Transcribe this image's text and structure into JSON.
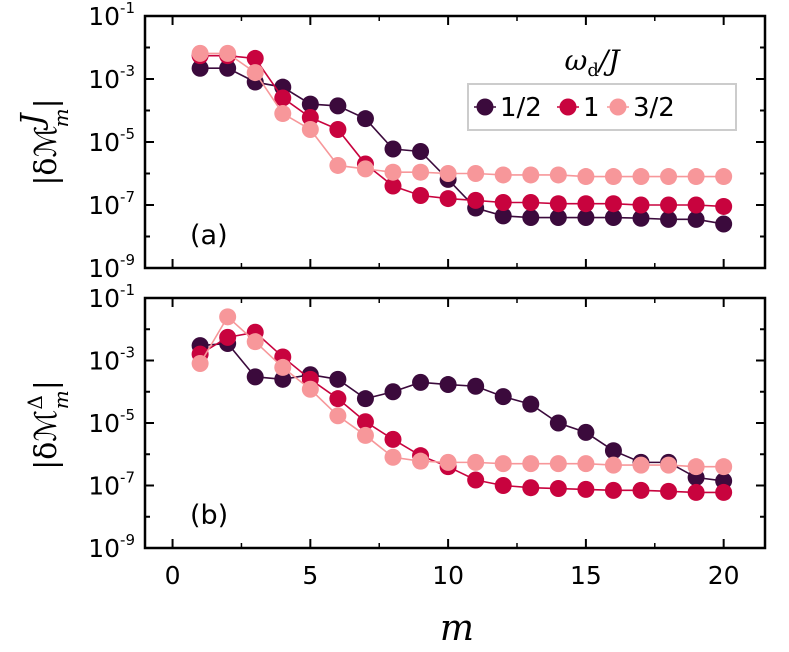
{
  "figure": {
    "xlabel": "m",
    "legend": {
      "title": "ωd/J",
      "title_main": "ω",
      "title_sub": "d",
      "title_rest": "/J"
    }
  },
  "chart_data": [
    {
      "type": "line",
      "panel": "(a)",
      "ylabel": "|δℳ_m^J|",
      "ylabel_sup": "J",
      "yscale": "log",
      "xlim": [
        -1,
        21.5
      ],
      "ylim": [
        1e-09,
        0.1
      ],
      "xticks": [
        0,
        5,
        10,
        15,
        20
      ],
      "xtick_labels": [
        "0",
        "5",
        "10",
        "15",
        "20"
      ],
      "yticks": [
        1e-09,
        1e-07,
        1e-05,
        0.001,
        0.1
      ],
      "ytick_labels": [
        {
          "base": "10",
          "exp": "-9"
        },
        {
          "base": "10",
          "exp": "-7"
        },
        {
          "base": "10",
          "exp": "-5"
        },
        {
          "base": "10",
          "exp": "-3"
        },
        {
          "base": "10",
          "exp": "-1"
        }
      ],
      "x": [
        1,
        2,
        3,
        4,
        5,
        6,
        7,
        8,
        9,
        10,
        11,
        12,
        13,
        14,
        15,
        16,
        17,
        18,
        19,
        20
      ],
      "series": [
        {
          "name": "1/2",
          "color": "#3b0a3c",
          "values": [
            0.0022,
            0.0022,
            0.0008,
            0.00055,
            0.00016,
            0.00014,
            5.5e-05,
            6e-06,
            5e-06,
            6.5e-07,
            8e-08,
            4.5e-08,
            4e-08,
            4e-08,
            4e-08,
            4e-08,
            3.8e-08,
            3.5e-08,
            3.5e-08,
            2.5e-08
          ]
        },
        {
          "name": "1",
          "color": "#c8033e",
          "values": [
            0.0055,
            0.0055,
            0.0045,
            0.00025,
            6e-05,
            2.5e-05,
            2e-06,
            4e-07,
            2e-07,
            1.6e-07,
            1.4e-07,
            1.2e-07,
            1.2e-07,
            1.1e-07,
            1.1e-07,
            1.1e-07,
            1e-07,
            1e-07,
            1e-07,
            9e-08
          ]
        },
        {
          "name": "3/2",
          "color": "#f7979a",
          "values": [
            0.0065,
            0.0065,
            0.0016,
            8e-05,
            2.5e-05,
            1.8e-06,
            1.4e-06,
            1.1e-06,
            1.1e-06,
            1e-06,
            1e-06,
            9e-07,
            9e-07,
            9e-07,
            8e-07,
            8e-07,
            8e-07,
            8e-07,
            8e-07,
            8e-07
          ]
        }
      ]
    },
    {
      "type": "line",
      "panel": "(b)",
      "ylabel": "|δℳ_m^Δ|",
      "ylabel_sup": "Δ",
      "yscale": "log",
      "xlim": [
        -1,
        21.5
      ],
      "ylim": [
        1e-09,
        0.1
      ],
      "xticks": [
        0,
        5,
        10,
        15,
        20
      ],
      "xtick_labels": [
        "0",
        "5",
        "10",
        "15",
        "20"
      ],
      "yticks": [
        1e-09,
        1e-07,
        1e-05,
        0.001,
        0.1
      ],
      "ytick_labels": [
        {
          "base": "10",
          "exp": "-9"
        },
        {
          "base": "10",
          "exp": "-7"
        },
        {
          "base": "10",
          "exp": "-5"
        },
        {
          "base": "10",
          "exp": "-3"
        },
        {
          "base": "10",
          "exp": "-1"
        }
      ],
      "x": [
        1,
        2,
        3,
        4,
        5,
        6,
        7,
        8,
        9,
        10,
        11,
        12,
        13,
        14,
        15,
        16,
        17,
        18,
        19,
        20
      ],
      "series": [
        {
          "name": "1/2",
          "color": "#3b0a3c",
          "values": [
            0.003,
            0.0035,
            0.0003,
            0.00025,
            0.00035,
            0.00025,
            6e-05,
            0.0001,
            0.0002,
            0.00017,
            0.00015,
            7e-05,
            4e-05,
            1e-05,
            5e-06,
            1.3e-06,
            5.5e-07,
            5.5e-07,
            1.8e-07,
            1.4e-07
          ]
        },
        {
          "name": "1",
          "color": "#c8033e",
          "values": [
            0.0016,
            0.0055,
            0.008,
            0.0013,
            0.00025,
            6e-05,
            1.1e-05,
            3e-06,
            9e-07,
            4e-07,
            1.5e-07,
            1e-07,
            8.5e-08,
            8e-08,
            7.5e-08,
            7e-08,
            7e-08,
            6.5e-08,
            6e-08,
            6e-08
          ]
        },
        {
          "name": "3/2",
          "color": "#f7979a",
          "values": [
            0.0008,
            0.025,
            0.004,
            0.0006,
            0.00012,
            1.7e-05,
            4e-06,
            8e-07,
            6e-07,
            5.5e-07,
            5.5e-07,
            5e-07,
            5e-07,
            5e-07,
            5e-07,
            4.5e-07,
            4.5e-07,
            4.5e-07,
            4e-07,
            4e-07
          ]
        }
      ]
    }
  ]
}
